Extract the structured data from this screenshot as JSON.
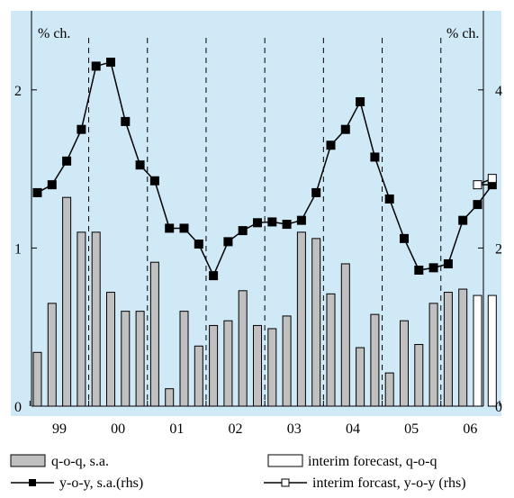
{
  "colors": {
    "background": "#ffffff",
    "plot_area": "#cfe9f6",
    "bar_fill": "#c0c0c0",
    "forecast_bar_fill": "#ffffff",
    "line": "#000000"
  },
  "chart_data": {
    "type": "bar",
    "title": "",
    "ylabel_left": "% ch.",
    "ylabel_right": "% ch.",
    "ylim_left": [
      0,
      2.5
    ],
    "ylim_right": [
      0,
      5
    ],
    "yticks_left": [
      "0",
      "1",
      "2"
    ],
    "yticks_right": [
      "0",
      "2",
      "4"
    ],
    "year_labels": [
      "99",
      "00",
      "01",
      "02",
      "03",
      "04",
      "05",
      "06"
    ],
    "year_dividers_after_quarter": [
      4,
      8,
      12,
      16,
      20,
      24,
      28
    ],
    "grid": false,
    "legend_position": "bottom",
    "series": [
      {
        "name": "q-o-q, s.a.",
        "kind": "bar",
        "axis": "left",
        "values": [
          0.34,
          0.65,
          1.32,
          1.1,
          1.1,
          0.72,
          0.6,
          0.6,
          0.91,
          0.11,
          0.6,
          0.38,
          0.51,
          0.54,
          0.73,
          0.51,
          0.49,
          0.57,
          1.1,
          1.06,
          0.71,
          0.9,
          0.37,
          0.58,
          0.21,
          0.54,
          0.39,
          0.65,
          0.72,
          0.74
        ]
      },
      {
        "name": "interim forecast, q-o-q",
        "kind": "bar",
        "axis": "left",
        "offset": 30,
        "values": [
          0.7,
          0.7
        ]
      },
      {
        "name": "y-o-y, s.a.(rhs)",
        "kind": "line",
        "axis": "right",
        "values": [
          2.7,
          2.8,
          3.1,
          3.5,
          4.3,
          4.35,
          3.6,
          3.05,
          2.85,
          2.25,
          2.25,
          2.05,
          1.65,
          2.08,
          2.22,
          2.32,
          2.33,
          2.3,
          2.35,
          2.7,
          3.3,
          3.5,
          3.85,
          3.15,
          2.62,
          2.12,
          1.72,
          1.75,
          1.8,
          2.35,
          2.55,
          2.8
        ]
      },
      {
        "name": "interim forcast, y-o-y (rhs)",
        "kind": "line",
        "axis": "right",
        "offset": 30,
        "values": [
          2.8,
          2.88
        ]
      }
    ]
  }
}
